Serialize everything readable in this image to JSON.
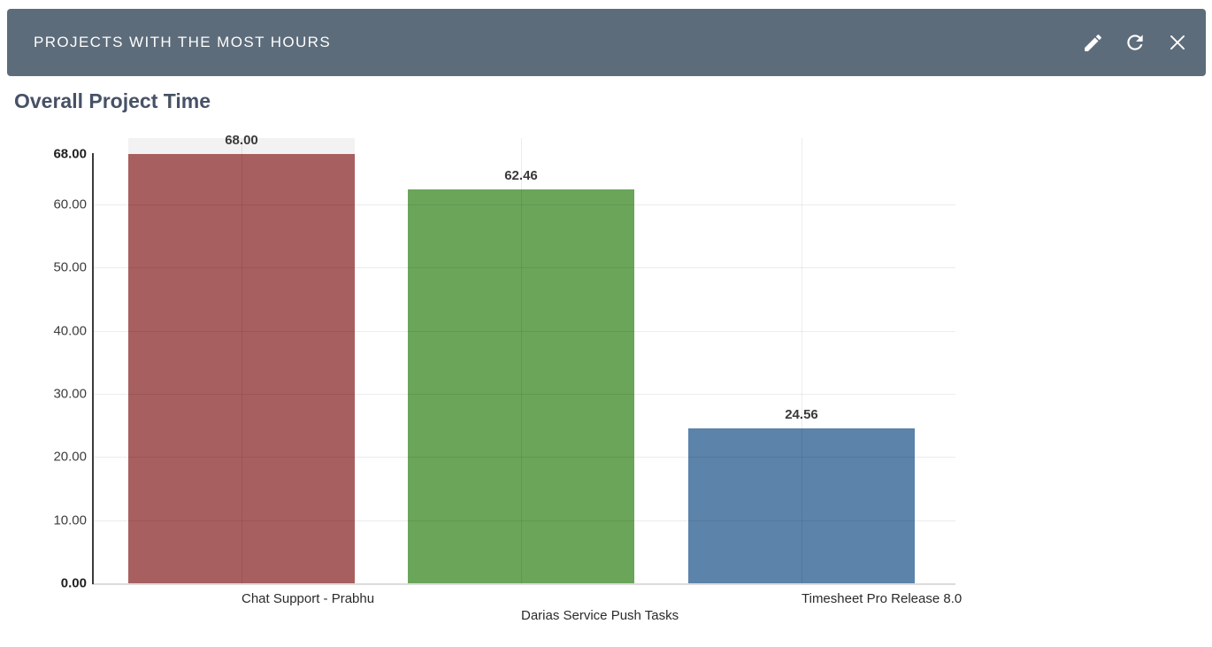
{
  "widget": {
    "title": "PROJECTS WITH THE MOST HOURS",
    "header_bg": "#5d6c7b",
    "actions": {
      "edit": "Edit",
      "refresh": "Refresh",
      "close": "Close"
    }
  },
  "chart_data": {
    "type": "bar",
    "title": "Overall Project Time",
    "categories": [
      "Chat Support - Prabhu",
      "Darias Service Push Tasks",
      "Timesheet Pro Release 8.0"
    ],
    "values": [
      68,
      62.46,
      24.56
    ],
    "value_labels": [
      "68.00",
      "62.46",
      "24.56"
    ],
    "bar_colors": [
      "#a85f5f",
      "#6aa55a",
      "#5c83aa"
    ],
    "ylim": [
      0,
      70.7
    ],
    "y_ticks": [
      {
        "label": "68.00",
        "value": 68,
        "bold": true,
        "grid": false
      },
      {
        "label": "60.00",
        "value": 60,
        "bold": false,
        "grid": true
      },
      {
        "label": "50.00",
        "value": 50,
        "bold": false,
        "grid": true
      },
      {
        "label": "40.00",
        "value": 40,
        "bold": false,
        "grid": true
      },
      {
        "label": "30.00",
        "value": 30,
        "bold": false,
        "grid": true
      },
      {
        "label": "20.00",
        "value": 20,
        "bold": false,
        "grid": true
      },
      {
        "label": "10.00",
        "value": 10,
        "bold": false,
        "grid": true
      },
      {
        "label": "0.00",
        "value": 0,
        "bold": true,
        "grid": false
      }
    ],
    "grid": true,
    "legend": "none",
    "xlabel": "",
    "ylabel": "",
    "highlighted_category_index": 0,
    "label_layout": "staggered"
  }
}
